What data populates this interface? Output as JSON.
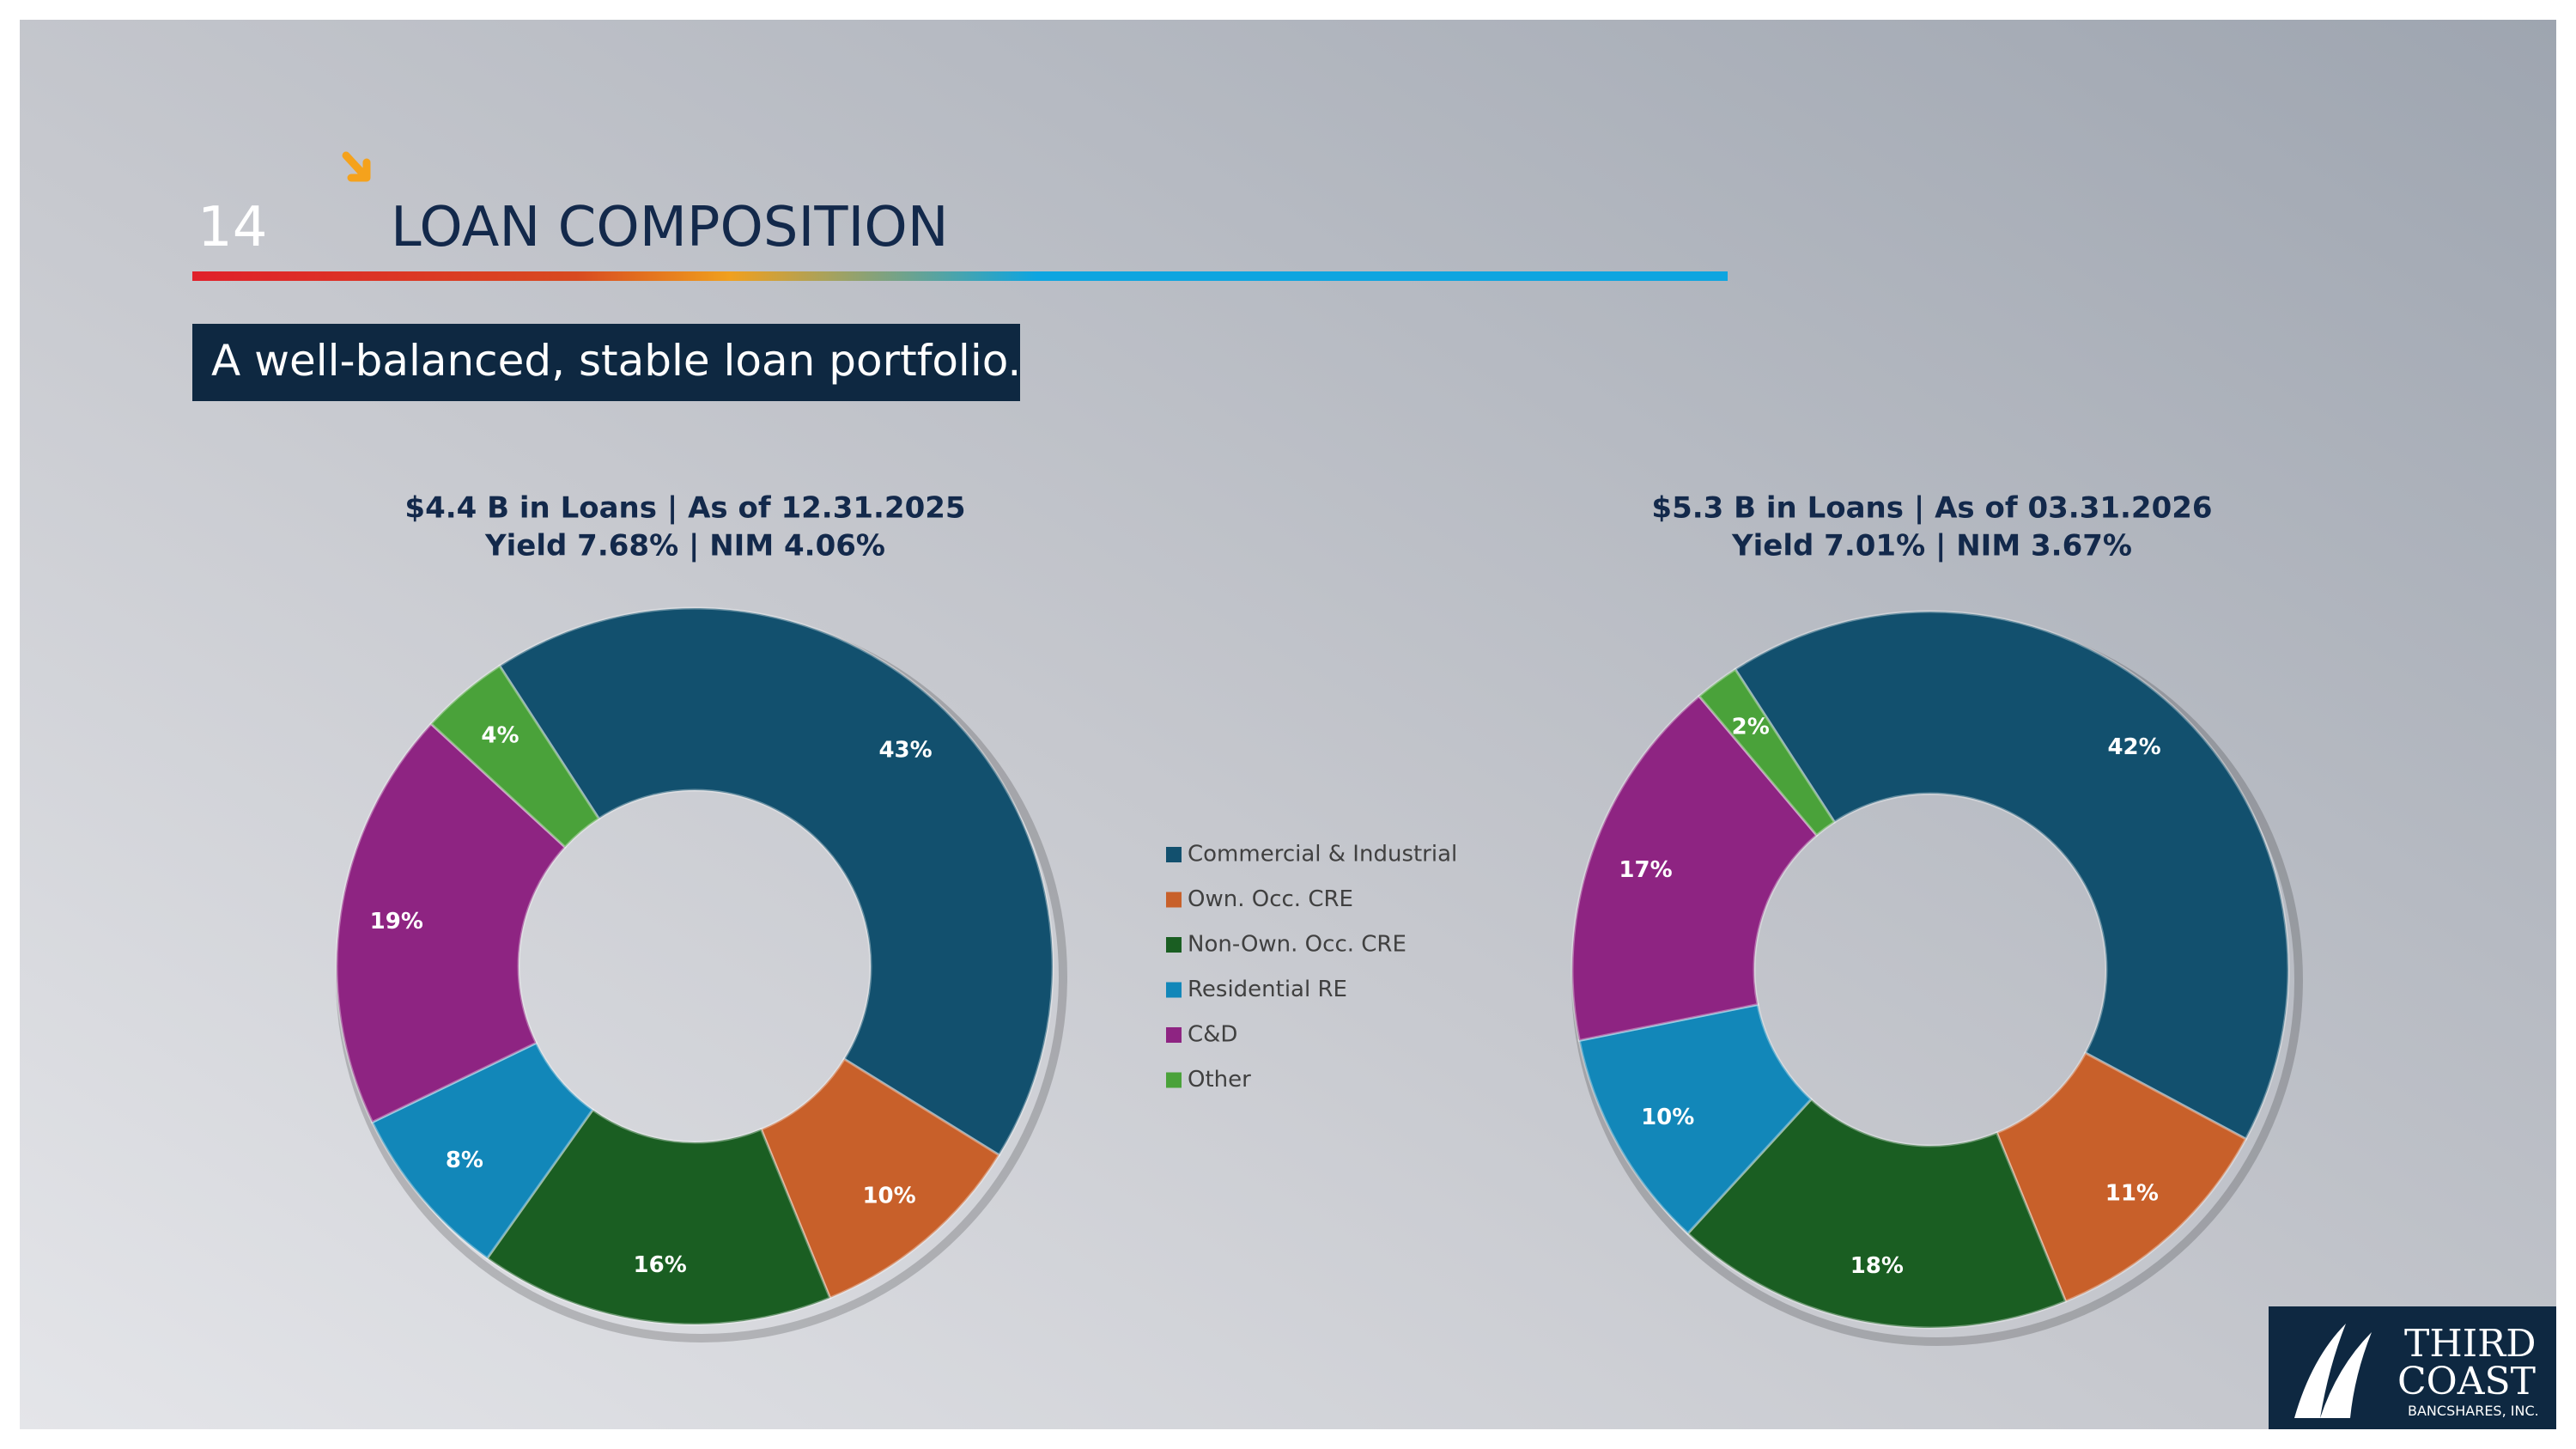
{
  "slide_number": "14",
  "title": "LOAN COMPOSITION",
  "subtitle": "A well-balanced, stable loan portfolio.",
  "logo": {
    "line1": "THIRD",
    "line2": "COAST",
    "line3": "BANCSHARES, INC."
  },
  "chart_data": [
    {
      "type": "pie",
      "title": "$4.4 B in Loans | As of 12.31.2025",
      "subtitle": "Yield 7.68% | NIM 4.06%",
      "categories": [
        "Commercial & Industrial",
        "Own. Occ. CRE",
        "Non-Own. Occ. CRE",
        "Residential RE",
        "C&D",
        "Other"
      ],
      "colors": [
        "#12506e",
        "#c8602a",
        "#1a5e22",
        "#1287b9",
        "#8e2482",
        "#4aa23a"
      ],
      "values": [
        43,
        10,
        16,
        8,
        19,
        4
      ],
      "value_labels": [
        "43%",
        "10%",
        "16%",
        "8%",
        "19%",
        "4%"
      ]
    },
    {
      "type": "pie",
      "title": "$5.3 B in Loans | As of 03.31.2026",
      "subtitle": "Yield 7.01% | NIM 3.67%",
      "values": [
        42,
        11,
        18,
        10,
        17,
        2
      ],
      "value_labels": [
        "42%",
        "11%",
        "18%",
        "10%",
        "17%",
        "2%"
      ]
    }
  ]
}
